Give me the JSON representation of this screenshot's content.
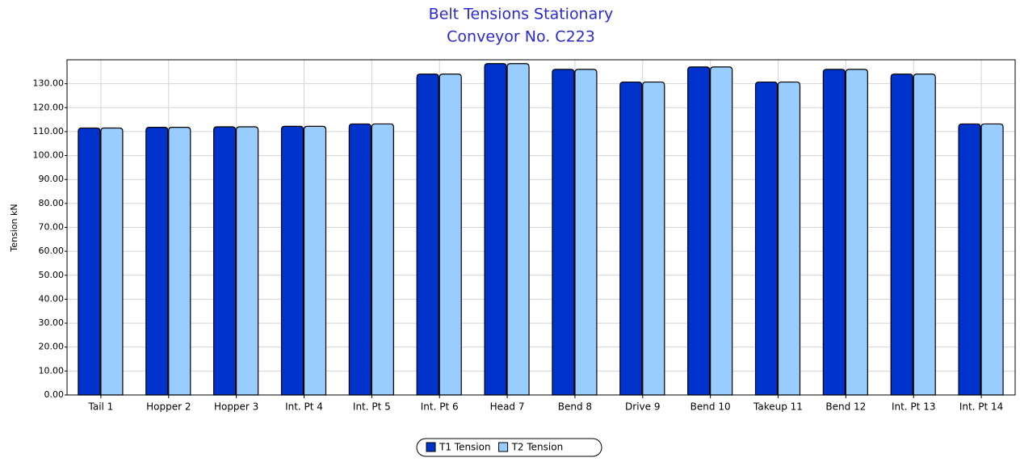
{
  "chart_data": {
    "type": "bar",
    "title": [
      "Belt Tensions Stationary",
      "Conveyor No. C223"
    ],
    "y_label": "Tension kN",
    "categories": [
      "Tail 1",
      "Hopper 2",
      "Hopper 3",
      "Int. Pt 4",
      "Int. Pt 5",
      "Int. Pt 6",
      "Head 7",
      "Bend 8",
      "Drive 9",
      "Bend 10",
      "Takeup 11",
      "Bend 12",
      "Int. Pt 13",
      "Int. Pt 14"
    ],
    "series": [
      {
        "name": "T1 Tension",
        "color": "#0033cc",
        "values": [
          111.5,
          111.8,
          112.0,
          112.2,
          113.2,
          134.0,
          138.4,
          136.0,
          130.7,
          137.0,
          130.7,
          136.0,
          134.0,
          113.2
        ]
      },
      {
        "name": "T2 Tension",
        "color": "#99ccff",
        "values": [
          111.5,
          111.8,
          112.0,
          112.2,
          113.2,
          134.0,
          138.4,
          136.0,
          130.7,
          137.0,
          130.7,
          136.0,
          134.0,
          113.2
        ]
      }
    ],
    "ylim": [
      0,
      140
    ],
    "yticks": [
      {
        "value": 0,
        "label": "0.00"
      },
      {
        "value": 10,
        "label": "10.00"
      },
      {
        "value": 20,
        "label": "20.00"
      },
      {
        "value": 30,
        "label": "30.00"
      },
      {
        "value": 40,
        "label": "40.00"
      },
      {
        "value": 50,
        "label": "50.00"
      },
      {
        "value": 60,
        "label": "60.00"
      },
      {
        "value": 70,
        "label": "70.00"
      },
      {
        "value": 80,
        "label": "80.00"
      },
      {
        "value": 90,
        "label": "90.00"
      },
      {
        "value": 100,
        "label": "100.00"
      },
      {
        "value": 110,
        "label": "110.00"
      },
      {
        "value": 120,
        "label": "120.00"
      },
      {
        "value": 130,
        "label": "130.00"
      }
    ],
    "grid": true,
    "legend": "bottom"
  }
}
